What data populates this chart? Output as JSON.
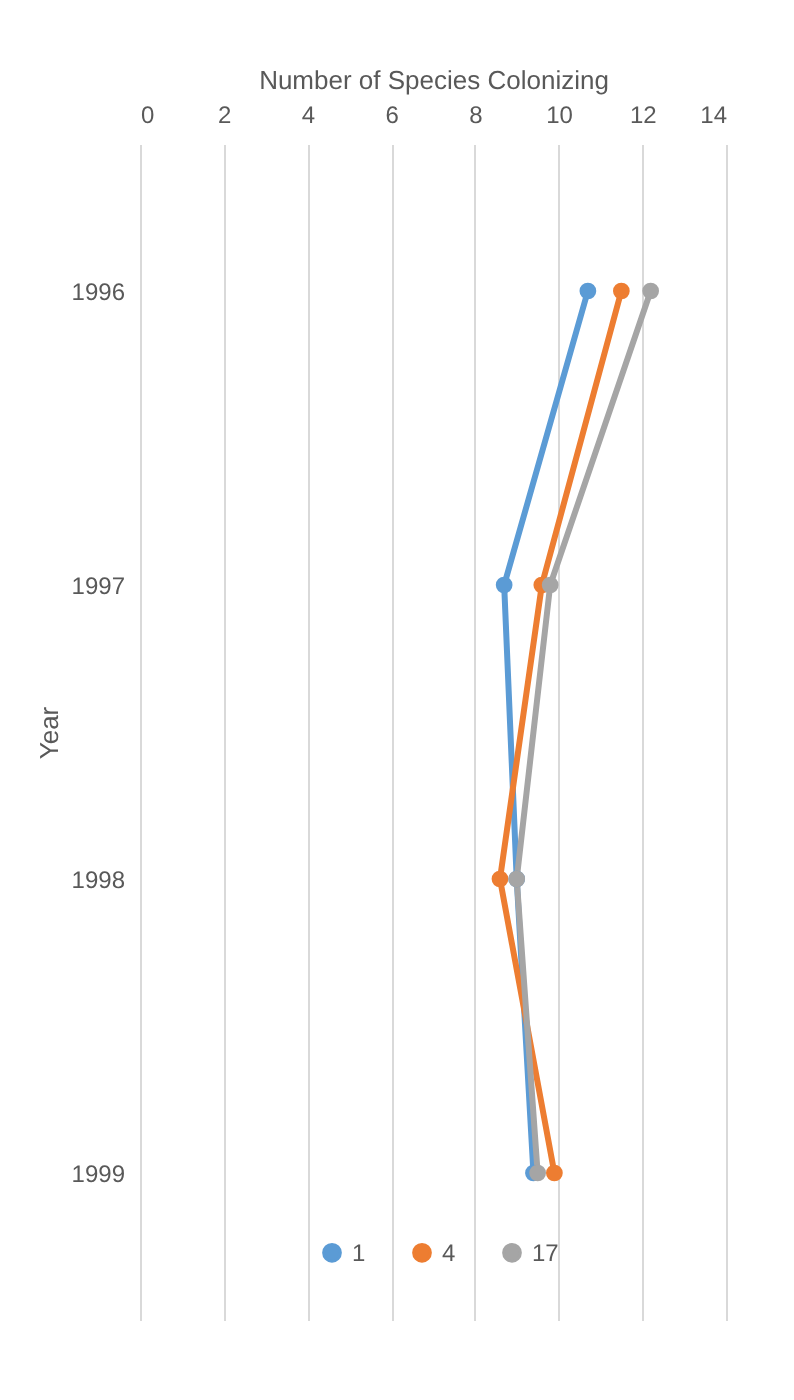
{
  "chart_data": {
    "type": "line",
    "orientation": "horizontal",
    "xlabel": "Number of Species Colonizing",
    "ylabel": "Year",
    "categories": [
      "1996",
      "1997",
      "1998",
      "1999"
    ],
    "series": [
      {
        "name": "1",
        "color": "#5b9bd5",
        "values": [
          10.7,
          8.7,
          9.0,
          9.4
        ]
      },
      {
        "name": "4",
        "color": "#ed7d31",
        "values": [
          11.5,
          9.6,
          8.6,
          9.9
        ]
      },
      {
        "name": "17",
        "color": "#a5a5a5",
        "values": [
          12.2,
          9.8,
          9.0,
          9.5
        ]
      }
    ],
    "xlim": [
      0,
      14
    ],
    "xticks": [
      0,
      2,
      4,
      6,
      8,
      10,
      12,
      14
    ],
    "grid": "x",
    "legend": "bottom",
    "marker": "circle",
    "line_style": "solid"
  }
}
